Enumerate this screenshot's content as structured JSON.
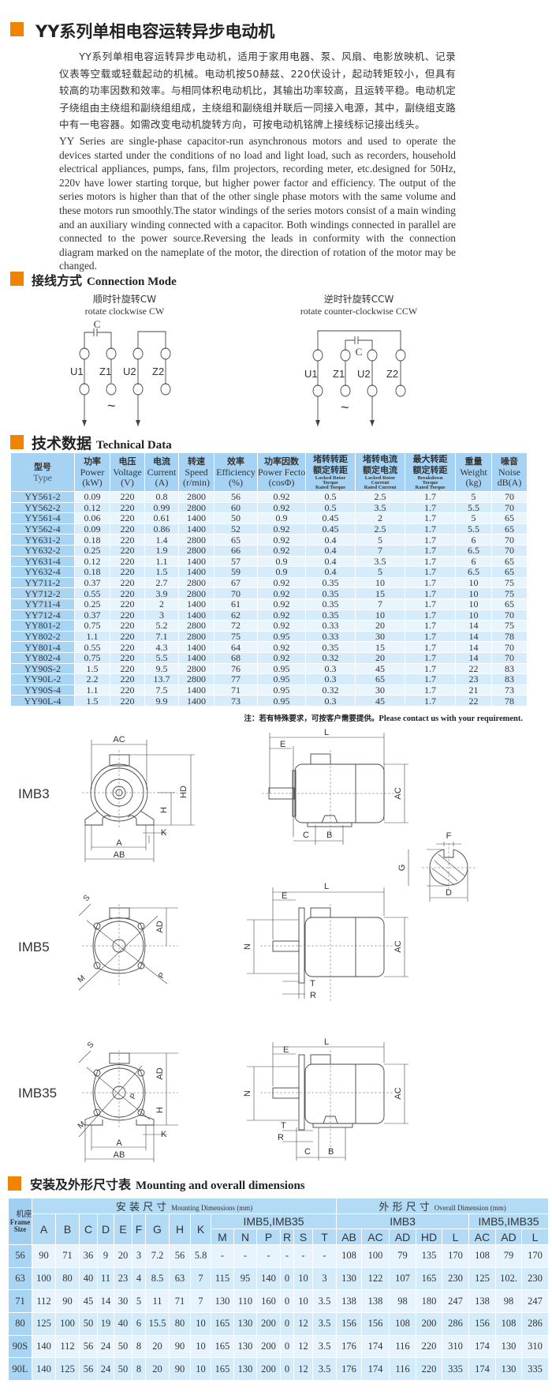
{
  "title": "YY系列单相电容运转异步电动机",
  "intro_cn": "YY系列单相电容运转异步电动机，适用于家用电器、泵、风扇、电影放映机、记录仪表等空载或轻载起动的机械。电动机按50赫兹、220伏设计，起动转矩较小，但具有较高的功率因数和效率。与相同体积电动机比，其输出功率较高，且运转平稳。电动机定子绕组由主绕组和副绕组组成，主绕组和副绕组并联后一同接入电源，其中，副绕组支路中有一电容器。如需改变电动机旋转方向，可按电动机铭牌上接线标记接出线头。",
  "intro_en": "YY Series are single-phase capacitor-run asynchronous motors and used to operate the devices started under the conditions of no load and light load, such as recorders, household electrical appliances, pumps, fans, film projectors, recording meter, etc.designed for 50Hz, 220v have lower starting torque, but higher power factor and efficiency. The output of the series motors is higher than that of the other single phase motors with the same volume and these motors run smoothly.The stator windings of the series motors consist of a main winding and an auxiliary winding connected with a capacitor. Both windings connected in parallel are connected to the power source.Reversing the leads in conformity with the connection diagram marked on the nameplate of the motor, the direction of rotation of the motor may be changed.",
  "accent_color": "#f08300",
  "connection": {
    "heading_cn": "接线方式",
    "heading_en": "Connection Mode",
    "cw": {
      "title_cn": "顺时针旋转CW",
      "title_en": "rotate clockwise CW"
    },
    "ccw": {
      "title_cn": "逆时针旋转CCW",
      "title_en": "rotate counter-clockwise CCW"
    },
    "capacitor": "C",
    "terminals": [
      "U1",
      "Z1",
      "U2",
      "Z2"
    ],
    "ac_symbol": "~"
  },
  "technical": {
    "heading_cn": "技术数据",
    "heading_en": "Technical Data",
    "columns": [
      {
        "cn": "型号",
        "en": "Type"
      },
      {
        "cn": "功率",
        "en": "Power",
        "unit": "(kW)"
      },
      {
        "cn": "电压",
        "en": "Voltage",
        "unit": "(V)"
      },
      {
        "cn": "电流",
        "en": "Current",
        "unit": "(A)"
      },
      {
        "cn": "转速",
        "en": "Speed",
        "unit": "(r/min)"
      },
      {
        "cn": "效率",
        "en": "Efficiency",
        "unit": "(%)"
      },
      {
        "cn": "功率因数",
        "en": "Power Fector",
        "unit": "(cosΦ)"
      },
      {
        "cn": "堵转转距",
        "cn2": "额定转距",
        "en": "Locked Rotor",
        "en2": "Torque",
        "en3": "Rated Torque"
      },
      {
        "cn": "堵转电流",
        "cn2": "额定电流",
        "en": "Locked Rotor",
        "en2": "Current",
        "en3": "Rated Current"
      },
      {
        "cn": "最大转距",
        "cn2": "额定转距",
        "en": "Breakdown",
        "en2": "Torque",
        "en3": "Rated Torque"
      },
      {
        "cn": "重量",
        "en": "Weight",
        "unit": "(kg)"
      },
      {
        "cn": "噪音",
        "en": "Noise",
        "unit": "dB(A)"
      }
    ],
    "rows": [
      [
        "YY561-2",
        "0.09",
        "220",
        "0.8",
        "2800",
        "56",
        "0.92",
        "0.5",
        "2.5",
        "1.7",
        "5",
        "70"
      ],
      [
        "YY562-2",
        "0.12",
        "220",
        "0.99",
        "2800",
        "60",
        "0.92",
        "0.5",
        "3.5",
        "1.7",
        "5.5",
        "70"
      ],
      [
        "YY561-4",
        "0.06",
        "220",
        "0.61",
        "1400",
        "50",
        "0.9",
        "0.45",
        "2",
        "1.7",
        "5",
        "65"
      ],
      [
        "YY562-4",
        "0.09",
        "220",
        "0.86",
        "1400",
        "52",
        "0.92",
        "0.45",
        "2.5",
        "1.7",
        "5.5",
        "65"
      ],
      [
        "YY631-2",
        "0.18",
        "220",
        "1.4",
        "2800",
        "65",
        "0.92",
        "0.4",
        "5",
        "1.7",
        "6",
        "70"
      ],
      [
        "YY632-2",
        "0.25",
        "220",
        "1.9",
        "2800",
        "66",
        "0.92",
        "0.4",
        "7",
        "1.7",
        "6.5",
        "70"
      ],
      [
        "YY631-4",
        "0.12",
        "220",
        "1.1",
        "1400",
        "57",
        "0.9",
        "0.4",
        "3.5",
        "1.7",
        "6",
        "65"
      ],
      [
        "YY632-4",
        "0.18",
        "220",
        "1.5",
        "1400",
        "59",
        "0.9",
        "0.4",
        "5",
        "1.7",
        "6.5",
        "65"
      ],
      [
        "YY711-2",
        "0.37",
        "220",
        "2.7",
        "2800",
        "67",
        "0.92",
        "0.35",
        "10",
        "1.7",
        "10",
        "75"
      ],
      [
        "YY712-2",
        "0.55",
        "220",
        "3.9",
        "2800",
        "70",
        "0.92",
        "0.35",
        "15",
        "1.7",
        "10",
        "75"
      ],
      [
        "YY711-4",
        "0.25",
        "220",
        "2",
        "1400",
        "61",
        "0.92",
        "0.35",
        "7",
        "1.7",
        "10",
        "65"
      ],
      [
        "YY712-4",
        "0.37",
        "220",
        "3",
        "1400",
        "62",
        "0.92",
        "0.35",
        "10",
        "1.7",
        "10",
        "70"
      ],
      [
        "YY801-2",
        "0.75",
        "220",
        "5.2",
        "2800",
        "72",
        "0.92",
        "0.33",
        "20",
        "1.7",
        "14",
        "75"
      ],
      [
        "YY802-2",
        "1.1",
        "220",
        "7.1",
        "2800",
        "75",
        "0.95",
        "0.33",
        "30",
        "1.7",
        "14",
        "78"
      ],
      [
        "YY801-4",
        "0.55",
        "220",
        "4.3",
        "1400",
        "64",
        "0.92",
        "0.35",
        "15",
        "1.7",
        "14",
        "70"
      ],
      [
        "YY802-4",
        "0.75",
        "220",
        "5.5",
        "1400",
        "68",
        "0.92",
        "0.32",
        "20",
        "1.7",
        "14",
        "70"
      ],
      [
        "YY90S-2",
        "1.5",
        "220",
        "9.5",
        "2800",
        "76",
        "0.95",
        "0.3",
        "45",
        "1.7",
        "22",
        "83"
      ],
      [
        "YY90L-2",
        "2.2",
        "220",
        "13.7",
        "2800",
        "77",
        "0.95",
        "0.3",
        "65",
        "1.7",
        "23",
        "83"
      ],
      [
        "YY90S-4",
        "1.1",
        "220",
        "7.5",
        "1400",
        "71",
        "0.95",
        "0.32",
        "30",
        "1.7",
        "21",
        "73"
      ],
      [
        "YY90L-4",
        "1.5",
        "220",
        "9.9",
        "1400",
        "73",
        "0.95",
        "0.3",
        "45",
        "1.7",
        "22",
        "78"
      ]
    ],
    "note_cn": "注：若有特殊要求，可按客户需要提供。",
    "note_en": "Please contact us with your requirement."
  },
  "drawings": {
    "views": [
      "IMB3",
      "IMB5",
      "IMB35"
    ],
    "labels": {
      "AC": "AC",
      "HD": "HD",
      "H": "H",
      "K": "K",
      "A": "A",
      "AB": "AB",
      "L": "L",
      "E": "E",
      "C": "C",
      "B": "B",
      "F": "F",
      "G": "G",
      "D": "D",
      "S": "S",
      "AD": "AD",
      "M": "M",
      "P": "P",
      "N": "N",
      "T": "T",
      "R": "R"
    }
  },
  "dimensions": {
    "heading_cn": "安装及外形尺寸表",
    "heading_en": "Mounting and overall dimensions",
    "frame_cn": "机座号",
    "frame_en": "Frame Size",
    "mounting_cn": "安 装 尺 寸",
    "mounting_en": "Mounting Dimensions (mm)",
    "overall_cn": "外 形 尺 寸",
    "overall_en": "Overall Dimension (mm)",
    "group_imb5_35": "IMB5,IMB35",
    "group_imb3": "IMB3",
    "base_cols": [
      "A",
      "B",
      "C",
      "D",
      "E",
      "F",
      "G",
      "H",
      "K"
    ],
    "sub_cols": [
      "M",
      "N",
      "P",
      "R",
      "S",
      "T",
      "AB",
      "AC",
      "AD",
      "HD",
      "L",
      "AC",
      "AD",
      "L"
    ],
    "rows": [
      [
        "56",
        "90",
        "71",
        "36",
        "9",
        "20",
        "3",
        "7.2",
        "56",
        "5.8",
        "-",
        "-",
        "-",
        "-",
        "-",
        "-",
        "108",
        "100",
        "79",
        "135",
        "170",
        "108",
        "79",
        "170"
      ],
      [
        "63",
        "100",
        "80",
        "40",
        "11",
        "23",
        "4",
        "8.5",
        "63",
        "7",
        "115",
        "95",
        "140",
        "0",
        "10",
        "3",
        "130",
        "122",
        "107",
        "165",
        "230",
        "125",
        "102.",
        "230"
      ],
      [
        "71",
        "112",
        "90",
        "45",
        "14",
        "30",
        "5",
        "11",
        "71",
        "7",
        "130",
        "110",
        "160",
        "0",
        "10",
        "3.5",
        "138",
        "138",
        "98",
        "180",
        "247",
        "138",
        "98",
        "247"
      ],
      [
        "80",
        "125",
        "100",
        "50",
        "19",
        "40",
        "6",
        "15.5",
        "80",
        "10",
        "165",
        "130",
        "200",
        "0",
        "12",
        "3.5",
        "156",
        "156",
        "108",
        "200",
        "286",
        "156",
        "108",
        "286"
      ],
      [
        "90S",
        "140",
        "112",
        "56",
        "24",
        "50",
        "8",
        "20",
        "90",
        "10",
        "165",
        "130",
        "200",
        "0",
        "12",
        "3.5",
        "176",
        "174",
        "116",
        "220",
        "310",
        "174",
        "130",
        "310"
      ],
      [
        "90L",
        "140",
        "125",
        "56",
        "24",
        "50",
        "8",
        "20",
        "90",
        "10",
        "165",
        "130",
        "200",
        "0",
        "12",
        "3.5",
        "176",
        "174",
        "116",
        "220",
        "335",
        "174",
        "130",
        "335"
      ]
    ]
  }
}
